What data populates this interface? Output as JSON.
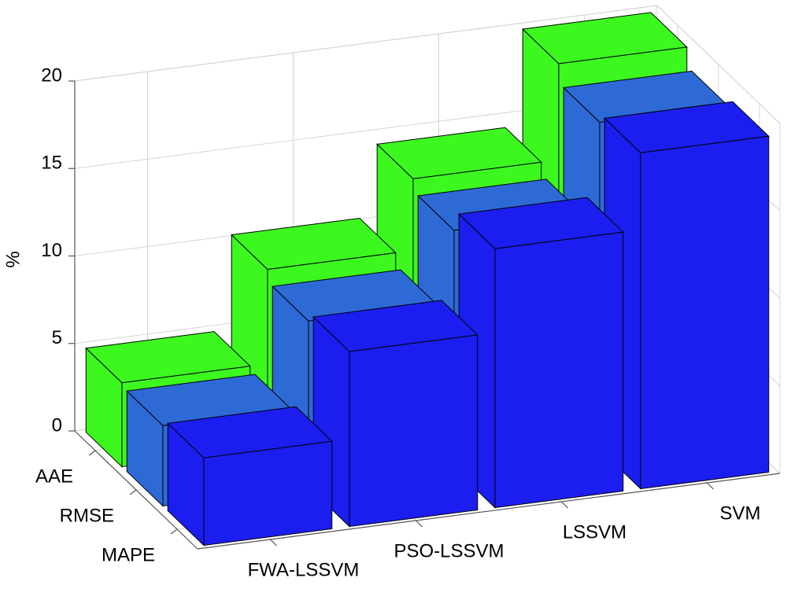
{
  "chart_data": {
    "type": "bar3d",
    "ylabel": "%",
    "categories": [
      "FWA-LSSVM",
      "PSO-LSSVM",
      "LSSVM",
      "SVM"
    ],
    "series": [
      {
        "name": "AAE",
        "color": "#3cf81e",
        "values": [
          4.8,
          10.2,
          14.3,
          19.8
        ]
      },
      {
        "name": "RMSE",
        "color": "#2e6ad6",
        "values": [
          4.6,
          9.5,
          13.6,
          18.7
        ]
      },
      {
        "name": "MAPE",
        "color": "#1c1ef0",
        "values": [
          5.0,
          10.0,
          14.8,
          19.2
        ]
      }
    ],
    "ylim": [
      0,
      20
    ],
    "yticks": [
      0,
      5,
      10,
      15,
      20
    ],
    "grid": true
  }
}
